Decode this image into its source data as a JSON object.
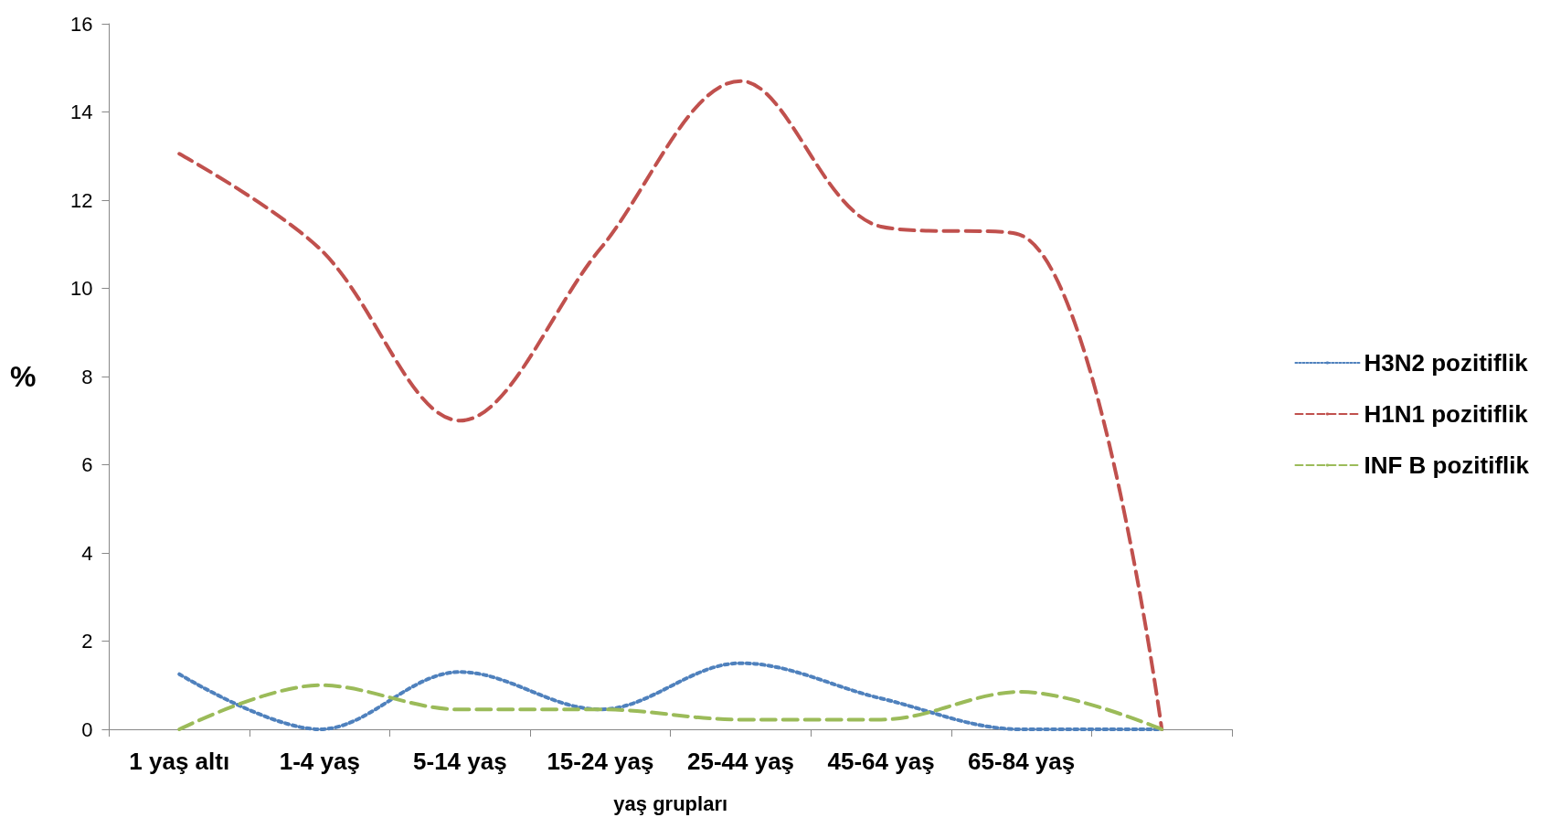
{
  "chart_data": {
    "type": "line",
    "xlabel": "yaş grupları",
    "ylabel": "%",
    "categories": [
      "1 yaş altı",
      "1-4 yaş",
      "5-14 yaş",
      "15-24 yaş",
      "25-44 yaş",
      "45-64 yaş",
      "65-84 yaş",
      null
    ],
    "series": [
      {
        "name": "H3N2 pozitiflik",
        "color": "#4f81bd",
        "line_style": "dotted",
        "values": [
          1.25,
          0,
          1.3,
          0.45,
          1.5,
          0.7,
          0,
          0
        ]
      },
      {
        "name": "H1N1 pozitiflik",
        "color": "#c0504d",
        "line_style": "dashed",
        "values": [
          13.05,
          10.9,
          7.0,
          10.9,
          14.7,
          11.4,
          11.2,
          0
        ]
      },
      {
        "name": "INF B pozitiflik",
        "color": "#9bbb59",
        "line_style": "dashed",
        "values": [
          0,
          1.0,
          0.45,
          0.45,
          0.22,
          0.22,
          0.85,
          0
        ]
      }
    ],
    "ylim": [
      0,
      16
    ],
    "yticks": [
      0,
      2,
      4,
      6,
      8,
      10,
      12,
      14,
      16
    ],
    "grid": false,
    "legend": "right",
    "marker": "none"
  }
}
